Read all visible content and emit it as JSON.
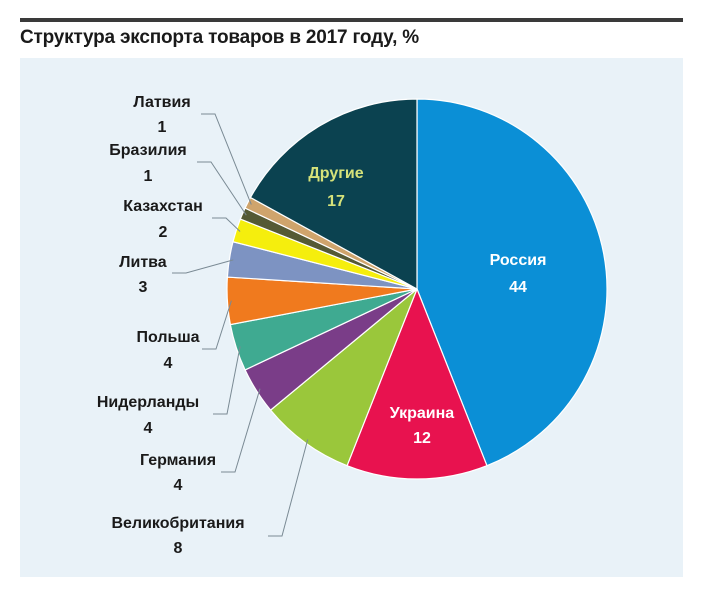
{
  "header": {
    "title": "Структура экспорта товаров в 2017 году, %"
  },
  "chart_data": {
    "type": "pie",
    "title": "Структура экспорта товаров в 2017 году, %",
    "unit": "%",
    "slices": [
      {
        "name": "Россия",
        "value": 44,
        "color": "#0b8fd6",
        "label_color": "#ffffff"
      },
      {
        "name": "Украина",
        "value": 12,
        "color": "#e8124f",
        "label_color": "#ffffff"
      },
      {
        "name": "Великобритания",
        "value": 8,
        "color": "#9ac73b",
        "label_color": "#1a1a1a"
      },
      {
        "name": "Германия",
        "value": 4,
        "color": "#7a3d88",
        "label_color": "#1a1a1a"
      },
      {
        "name": "Нидерланды",
        "value": 4,
        "color": "#3faa91",
        "label_color": "#1a1a1a"
      },
      {
        "name": "Польша",
        "value": 4,
        "color": "#f07a1e",
        "label_color": "#1a1a1a"
      },
      {
        "name": "Литва",
        "value": 3,
        "color": "#7d93c2",
        "label_color": "#1a1a1a"
      },
      {
        "name": "Казахстан",
        "value": 2,
        "color": "#f5ee0d",
        "label_color": "#1a1a1a"
      },
      {
        "name": "Бразилия",
        "value": 1,
        "color": "#555a35",
        "label_color": "#1a1a1a"
      },
      {
        "name": "Латвия",
        "value": 1,
        "color": "#cfa46c",
        "label_color": "#1a1a1a"
      },
      {
        "name": "Другие",
        "value": 17,
        "color": "#0b4250",
        "label_color": "#d6e27a"
      }
    ]
  }
}
